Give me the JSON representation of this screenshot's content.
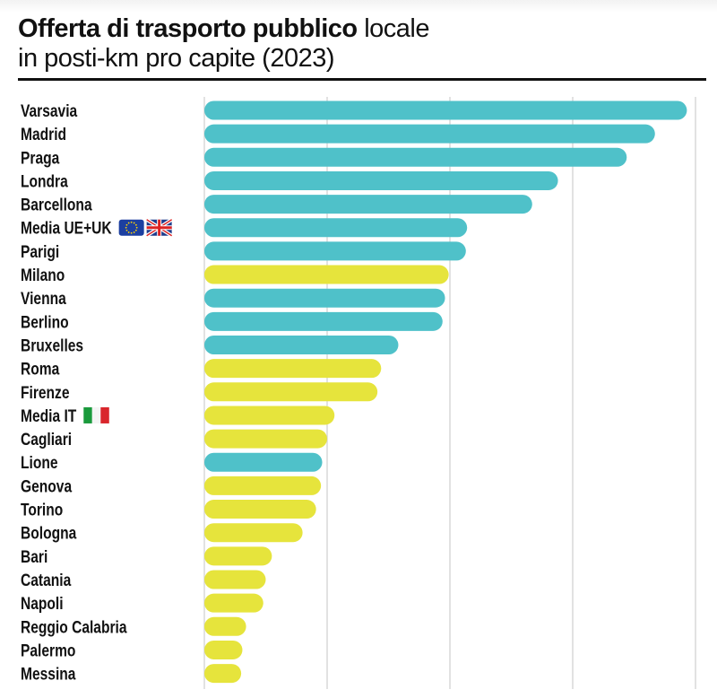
{
  "title_bold": "Offerta di trasporto pubblico",
  "title_rest": "locale",
  "subtitle": "in posti-km pro capite (2023)",
  "colors": {
    "non_italian": "#4fc1c9",
    "italian": "#e6e43c"
  },
  "chart_data": {
    "type": "bar",
    "orientation": "horizontal",
    "title": "Offerta di trasporto pubblico locale in posti-km pro capite (2023)",
    "xlim": [
      0,
      4
    ],
    "grid": true,
    "tick_labels_shown": false,
    "categories": [
      "Varsavia",
      "Madrid",
      "Praga",
      "Londra",
      "Barcellona",
      "Media UE+UK",
      "Parigi",
      "Milano",
      "Vienna",
      "Berlino",
      "Bruxelles",
      "Roma",
      "Firenze",
      "Media IT",
      "Cagliari",
      "Lione",
      "Genova",
      "Torino",
      "Bologna",
      "Bari",
      "Catania",
      "Napoli",
      "Reggio Calabria",
      "Palermo",
      "Messina"
    ],
    "values": [
      3.93,
      3.67,
      3.44,
      2.88,
      2.67,
      2.14,
      2.13,
      1.99,
      1.96,
      1.94,
      1.58,
      1.44,
      1.41,
      1.06,
      1.0,
      0.96,
      0.95,
      0.91,
      0.8,
      0.55,
      0.5,
      0.48,
      0.34,
      0.31,
      0.3
    ],
    "italian": [
      false,
      false,
      false,
      false,
      false,
      false,
      false,
      true,
      false,
      false,
      false,
      true,
      true,
      true,
      true,
      false,
      true,
      true,
      true,
      true,
      true,
      true,
      true,
      true,
      true
    ],
    "flags": {
      "Media UE+UK": [
        "eu-flag-icon",
        "uk-flag-icon"
      ],
      "Media IT": [
        "italy-flag-icon"
      ]
    }
  }
}
